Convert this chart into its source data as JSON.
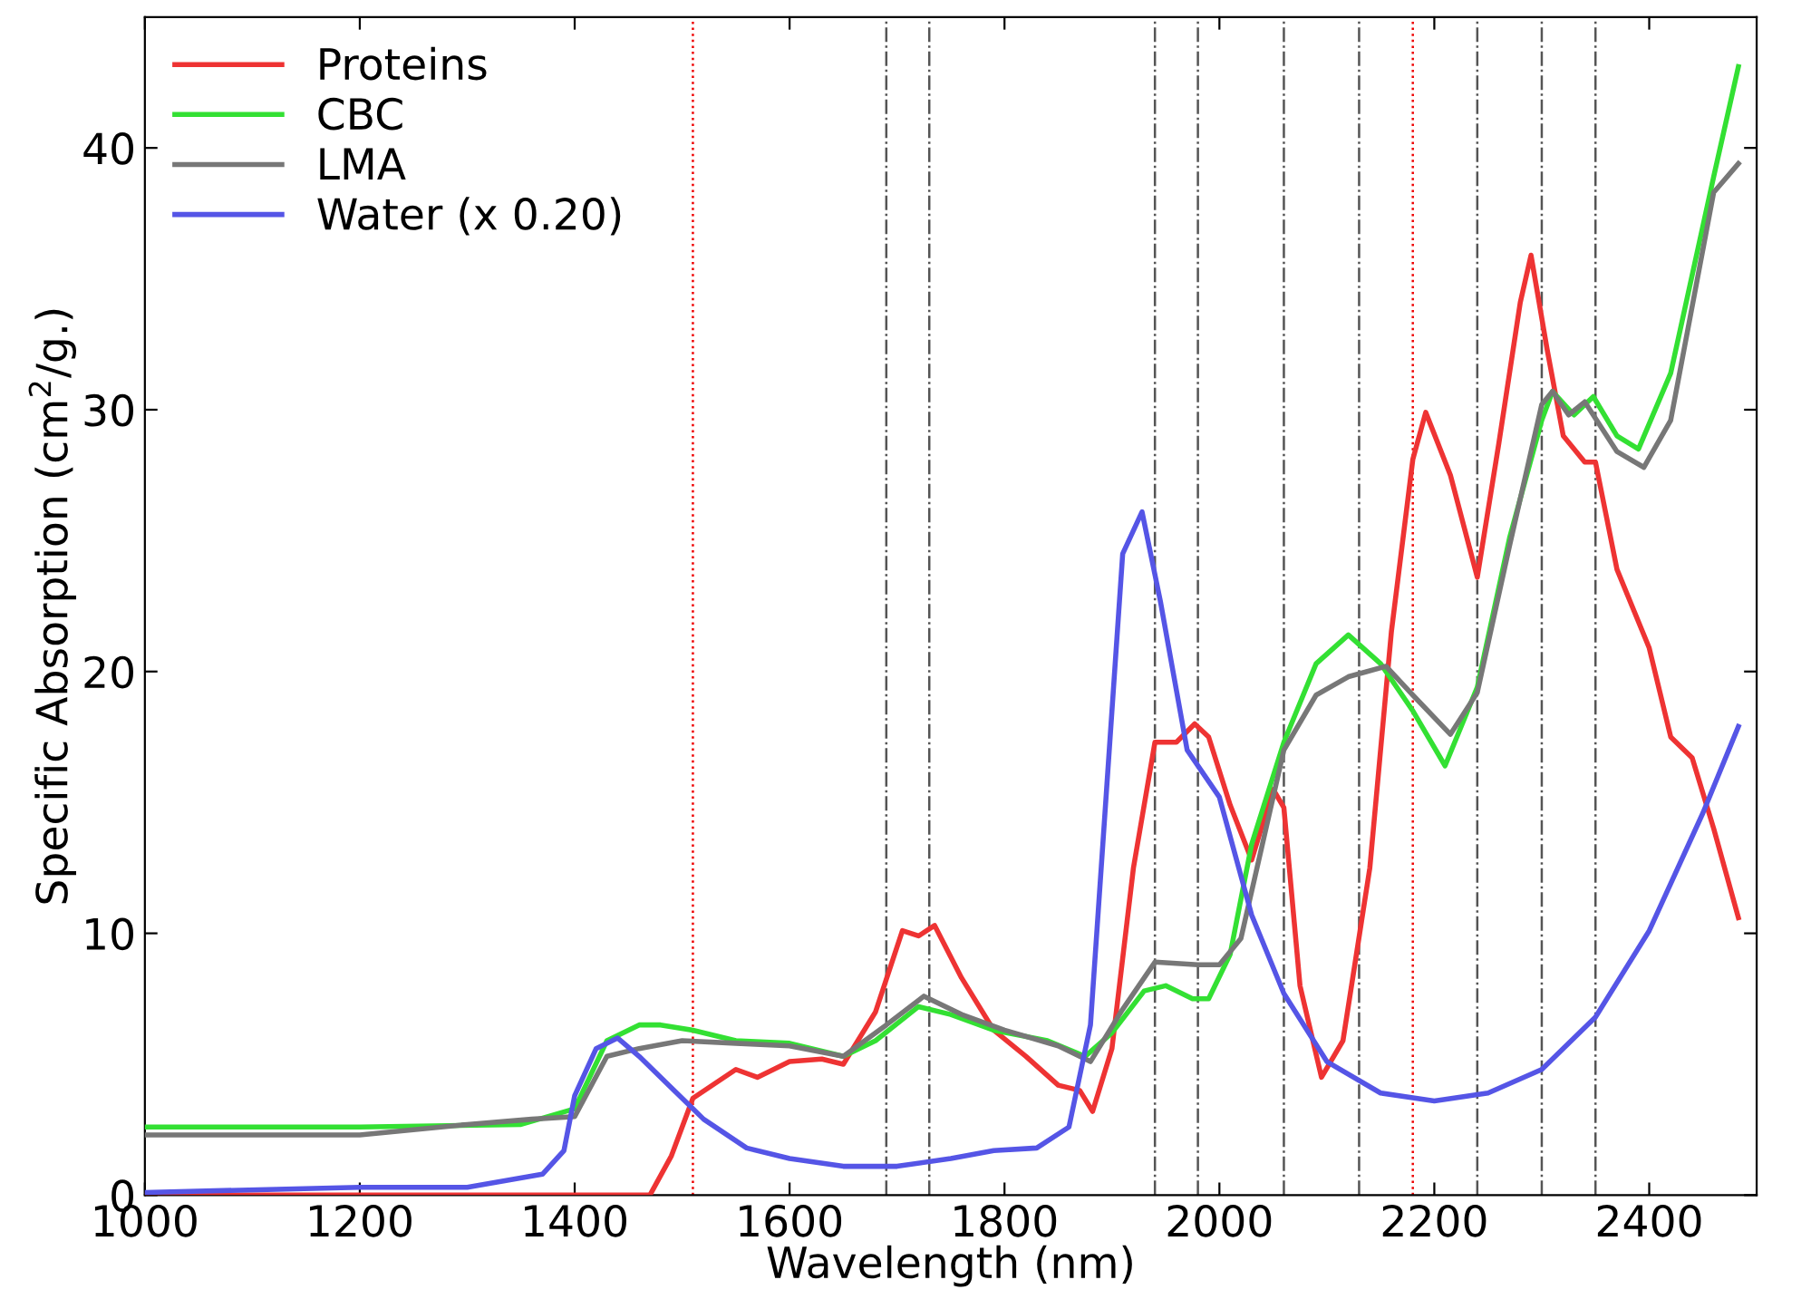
{
  "chart_data": {
    "type": "line",
    "xlabel": "Wavelength (nm)",
    "ylabel": "Specific Absorption (cm$^{2}$/g.)",
    "xlim": [
      1000,
      2500
    ],
    "ylim": [
      0,
      45
    ],
    "xticks": [
      1000,
      1200,
      1400,
      1600,
      1800,
      2000,
      2200,
      2400
    ],
    "yticks": [
      0,
      10,
      20,
      30,
      40
    ],
    "grid": false,
    "legend": "top left",
    "line_style": "solid",
    "marker": "none",
    "series": [
      {
        "name": "Proteins",
        "color": "#ee3333",
        "x": [
          1000,
          1470,
          1490,
          1510,
          1550,
          1570,
          1600,
          1630,
          1650,
          1680,
          1705,
          1720,
          1735,
          1760,
          1790,
          1820,
          1850,
          1870,
          1882,
          1900,
          1920,
          1940,
          1960,
          1977,
          1990,
          2010,
          2030,
          2050,
          2060,
          2075,
          2095,
          2115,
          2140,
          2160,
          2180,
          2192,
          2215,
          2240,
          2260,
          2280,
          2290,
          2305,
          2320,
          2340,
          2350,
          2370,
          2400,
          2420,
          2440,
          2460,
          2483
        ],
        "values": [
          0,
          0,
          1.5,
          3.7,
          4.8,
          4.5,
          5.1,
          5.2,
          5.0,
          7.0,
          10.1,
          9.9,
          10.3,
          8.3,
          6.3,
          5.3,
          4.2,
          4.0,
          3.2,
          5.6,
          12.5,
          17.3,
          17.3,
          18.0,
          17.5,
          14.9,
          12.8,
          15.5,
          14.8,
          8.0,
          4.5,
          5.9,
          12.5,
          21.5,
          28.1,
          29.9,
          27.5,
          23.6,
          28.7,
          34.1,
          35.9,
          32.3,
          29.0,
          28.0,
          28.0,
          23.9,
          20.9,
          17.5,
          16.7,
          14.0,
          10.6
        ]
      },
      {
        "name": "CBC",
        "color": "#33e033",
        "x": [
          1000,
          1200,
          1350,
          1400,
          1430,
          1460,
          1480,
          1510,
          1550,
          1600,
          1650,
          1680,
          1720,
          1750,
          1790,
          1840,
          1875,
          1900,
          1930,
          1950,
          1975,
          1990,
          2010,
          2030,
          2060,
          2090,
          2120,
          2150,
          2180,
          2210,
          2240,
          2270,
          2300,
          2310,
          2330,
          2348,
          2370,
          2390,
          2420,
          2460,
          2483
        ],
        "values": [
          2.6,
          2.6,
          2.7,
          3.3,
          5.9,
          6.5,
          6.5,
          6.3,
          5.9,
          5.8,
          5.3,
          5.9,
          7.2,
          6.9,
          6.3,
          5.9,
          5.3,
          6.2,
          7.8,
          8.0,
          7.5,
          7.5,
          9.2,
          13.4,
          17.3,
          20.3,
          21.4,
          20.3,
          18.5,
          16.4,
          19.4,
          25.1,
          29.6,
          30.7,
          29.8,
          30.5,
          29.0,
          28.5,
          31.4,
          38.9,
          43.1
        ]
      },
      {
        "name": "LMA",
        "color": "#777777",
        "x": [
          1000,
          1200,
          1300,
          1360,
          1400,
          1430,
          1460,
          1500,
          1550,
          1600,
          1650,
          1690,
          1725,
          1760,
          1800,
          1850,
          1880,
          1910,
          1940,
          1980,
          2000,
          2020,
          2040,
          2060,
          2090,
          2120,
          2155,
          2180,
          2215,
          2240,
          2270,
          2300,
          2310,
          2325,
          2340,
          2370,
          2395,
          2420,
          2460,
          2483
        ],
        "values": [
          2.3,
          2.3,
          2.7,
          2.9,
          3.0,
          5.3,
          5.6,
          5.9,
          5.8,
          5.7,
          5.3,
          6.5,
          7.6,
          6.9,
          6.3,
          5.7,
          5.1,
          7.1,
          8.9,
          8.8,
          8.8,
          9.8,
          13.4,
          17.0,
          19.1,
          19.8,
          20.2,
          19.1,
          17.6,
          19.2,
          24.8,
          30.2,
          30.7,
          29.8,
          30.3,
          28.4,
          27.8,
          29.6,
          38.3,
          39.4
        ]
      },
      {
        "name": "Water (x 0.20)",
        "color": "#5555e6",
        "x": [
          1000,
          1200,
          1300,
          1370,
          1390,
          1400,
          1420,
          1440,
          1460,
          1490,
          1520,
          1560,
          1600,
          1650,
          1700,
          1750,
          1790,
          1830,
          1860,
          1880,
          1895,
          1910,
          1928,
          1945,
          1970,
          2000,
          2030,
          2060,
          2100,
          2150,
          2200,
          2250,
          2300,
          2350,
          2400,
          2450,
          2483
        ],
        "values": [
          0.1,
          0.3,
          0.3,
          0.8,
          1.7,
          3.8,
          5.6,
          6.0,
          5.3,
          4.1,
          2.9,
          1.8,
          1.4,
          1.1,
          1.1,
          1.4,
          1.7,
          1.8,
          2.6,
          6.5,
          15.5,
          24.5,
          26.1,
          22.7,
          17.0,
          15.2,
          10.7,
          7.7,
          5.1,
          3.9,
          3.6,
          3.9,
          4.8,
          6.8,
          10.1,
          14.6,
          17.9
        ]
      }
    ],
    "ref_lines": [
      {
        "axis": "x",
        "value": 1510,
        "color": "#ee0000",
        "line_style": "dotted"
      },
      {
        "axis": "x",
        "value": 1690,
        "color": "#555555",
        "line_style": "dashdot"
      },
      {
        "axis": "x",
        "value": 1730,
        "color": "#555555",
        "line_style": "dashdot"
      },
      {
        "axis": "x",
        "value": 1940,
        "color": "#555555",
        "line_style": "dashdot"
      },
      {
        "axis": "x",
        "value": 1980,
        "color": "#555555",
        "line_style": "dashdot"
      },
      {
        "axis": "x",
        "value": 2060,
        "color": "#555555",
        "line_style": "dashdot"
      },
      {
        "axis": "x",
        "value": 2130,
        "color": "#555555",
        "line_style": "dashdot"
      },
      {
        "axis": "x",
        "value": 2180,
        "color": "#ee0000",
        "line_style": "dotted"
      },
      {
        "axis": "x",
        "value": 2240,
        "color": "#555555",
        "line_style": "dashdot"
      },
      {
        "axis": "x",
        "value": 2300,
        "color": "#555555",
        "line_style": "dashdot"
      },
      {
        "axis": "x",
        "value": 2350,
        "color": "#555555",
        "line_style": "dashdot"
      }
    ]
  }
}
